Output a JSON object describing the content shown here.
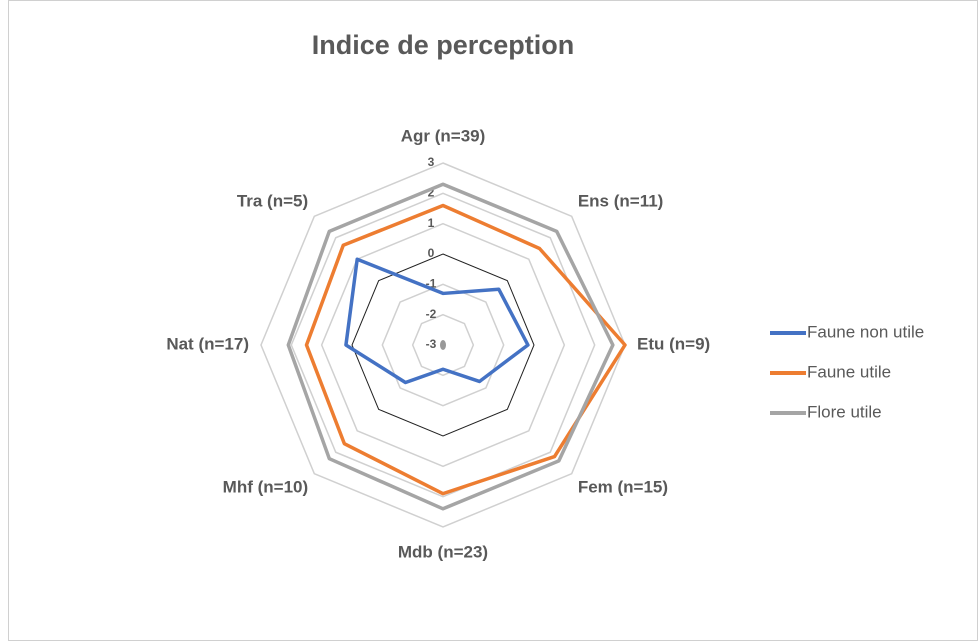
{
  "chart_data": {
    "type": "radar",
    "title": "Indice de perception",
    "categories": [
      "Agr (n=39)",
      "Ens  (n=11)",
      "Etu  (n=9)",
      "Fem  (n=15)",
      "Mdb  (n=23)",
      "Mhf  (n=10)",
      "Nat  (n=17)",
      "Tra  (n=5)"
    ],
    "series": [
      {
        "name": "Faune non utile",
        "color": "#4472c4",
        "values": [
          -1.3,
          -0.4,
          -0.2,
          -1.3,
          -2.2,
          -1.25,
          0.2,
          1.0
        ]
      },
      {
        "name": "Faune utile",
        "color": "#ed7d31",
        "values": [
          1.6,
          1.5,
          3.0,
          2.2,
          1.9,
          1.6,
          1.5,
          1.65
        ]
      },
      {
        "name": "Flore  utile",
        "color": "#a5a5a5",
        "values": [
          2.3,
          2.3,
          2.6,
          2.4,
          2.4,
          2.3,
          2.1,
          2.3
        ]
      }
    ],
    "ylim": [
      -3,
      3
    ],
    "yticks": [
      -3,
      -2,
      -1,
      0,
      1,
      2,
      3
    ],
    "grid": true,
    "legend": "right"
  }
}
